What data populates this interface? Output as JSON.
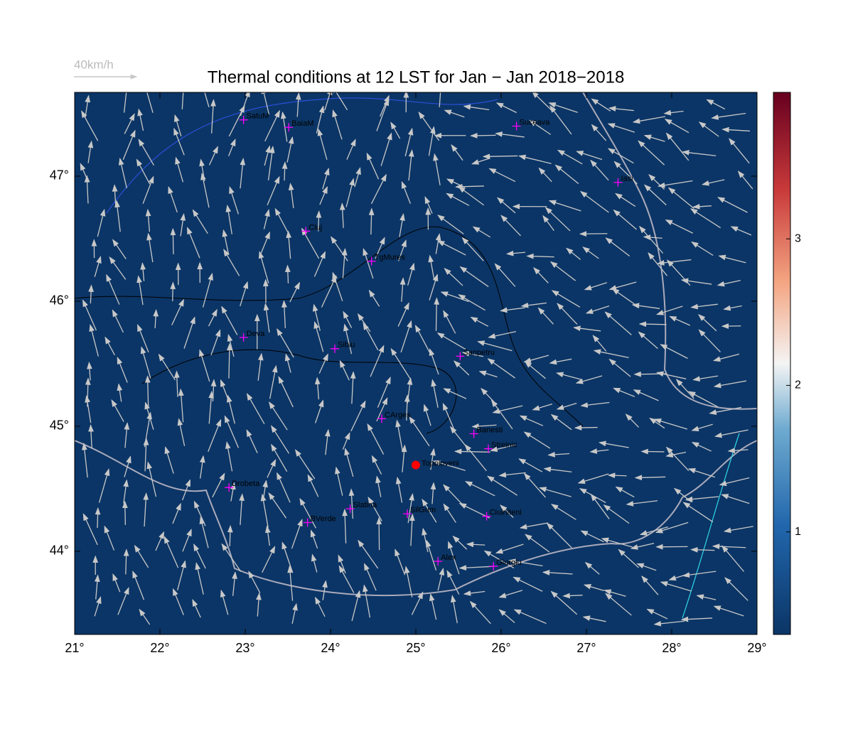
{
  "title": "Thermal conditions at 12 LST for Jan − Jan  2018−2018",
  "wind_scale": "40km/h",
  "map": {
    "xlim": [
      21,
      29
    ],
    "ylim": [
      43.335,
      47.67
    ],
    "xticks": [
      {
        "value": 21,
        "label": "21°"
      },
      {
        "value": 22,
        "label": "22°"
      },
      {
        "value": 23,
        "label": "23°"
      },
      {
        "value": 24,
        "label": "24°"
      },
      {
        "value": 25,
        "label": "25°"
      },
      {
        "value": 26,
        "label": "26°"
      },
      {
        "value": 27,
        "label": "27°"
      },
      {
        "value": 28,
        "label": "28°"
      },
      {
        "value": 29,
        "label": "29°"
      }
    ],
    "yticks": [
      {
        "value": 44,
        "label": "44°"
      },
      {
        "value": 45,
        "label": "45°"
      },
      {
        "value": 46,
        "label": "46°"
      },
      {
        "value": 47,
        "label": "47°"
      }
    ],
    "stations": [
      {
        "name": "SatuM",
        "lon": 22.98,
        "lat": 47.45
      },
      {
        "name": "BaiaM",
        "lon": 23.51,
        "lat": 47.39
      },
      {
        "name": "Suceava",
        "lon": 26.18,
        "lat": 47.4
      },
      {
        "name": "Iasi",
        "lon": 27.37,
        "lat": 46.95
      },
      {
        "name": "Cluj",
        "lon": 23.71,
        "lat": 46.56
      },
      {
        "name": "TgMures",
        "lon": 24.48,
        "lat": 46.32
      },
      {
        "name": "Deva",
        "lon": 22.98,
        "lat": 45.71
      },
      {
        "name": "Sibiu",
        "lon": 24.05,
        "lat": 45.62
      },
      {
        "name": "Sanpetru",
        "lon": 25.52,
        "lat": 45.56
      },
      {
        "name": "CArges",
        "lon": 24.6,
        "lat": 45.06
      },
      {
        "name": "Banesti",
        "lon": 25.68,
        "lat": 44.94
      },
      {
        "name": "Streinic",
        "lon": 25.85,
        "lat": 44.82
      },
      {
        "name": "Drobeta",
        "lon": 22.81,
        "lat": 44.51
      },
      {
        "name": "Slatina",
        "lon": 24.23,
        "lat": 44.34
      },
      {
        "name": "BVerde",
        "lon": 23.73,
        "lat": 44.23
      },
      {
        "name": "SilGum",
        "lon": 24.9,
        "lat": 44.3
      },
      {
        "name": "Ciulniteni",
        "lon": 25.83,
        "lat": 44.28
      },
      {
        "name": "Alex",
        "lon": 25.26,
        "lat": 43.92
      },
      {
        "name": "Giurgiu",
        "lon": 25.91,
        "lat": 43.88
      }
    ],
    "highlight": {
      "name": "Topoloveni",
      "lon": 25.0,
      "lat": 44.69,
      "color": "#ff0000"
    }
  },
  "colorbar": {
    "ylim": [
      0.3,
      4.0
    ],
    "yticks": [
      1,
      2,
      3
    ]
  }
}
